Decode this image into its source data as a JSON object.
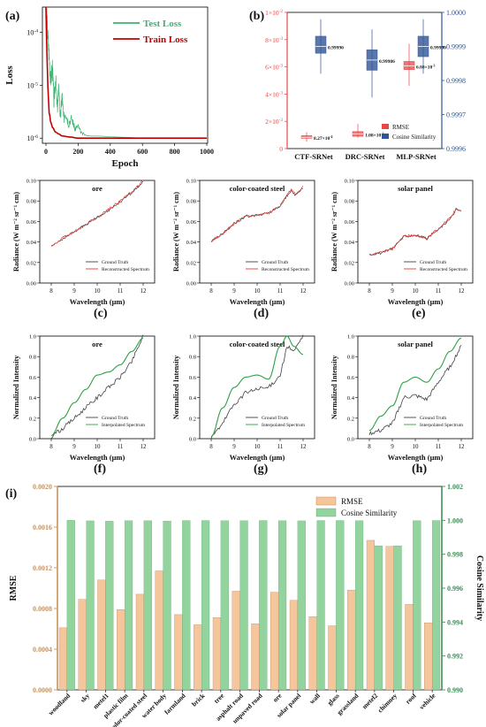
{
  "panel_letters": [
    "(a)",
    "(b)",
    "(c)",
    "(d)",
    "(e)",
    "(f)",
    "(g)",
    "(h)",
    "(i)"
  ],
  "colors": {
    "test_loss": "#3cb371",
    "train_loss": "#c00000",
    "rmse_red": "#e8474a",
    "cos_blue": "#2f5597",
    "ground_truth": "#404040",
    "reconstructed": "#e53935",
    "interpolated": "#2ea043",
    "bar_rmse": "#f5c59c",
    "bar_cos": "#93d39d",
    "axis_rmse": "#c8925e",
    "axis_cos": "#3e8f5a"
  },
  "chart_data": [
    {
      "id": "a",
      "type": "line",
      "xlabel": "Epoch",
      "ylabel": "Loss",
      "log_y": true,
      "xlim": [
        0,
        1000
      ],
      "ylim": [
        8e-07,
        0.0003
      ],
      "xticks": [
        "0",
        "200",
        "400",
        "600",
        "800",
        "1000"
      ],
      "yticks": [
        {
          "v": 0.0001,
          "label": "10^-4"
        },
        {
          "v": 1e-05,
          "label": "10^-5"
        },
        {
          "v": 1e-06,
          "label": "10^-6"
        }
      ],
      "series": [
        {
          "name": "Test Loss",
          "x": [
            0,
            5,
            10,
            20,
            30,
            40,
            50,
            60,
            70,
            80,
            90,
            100,
            110,
            120,
            140,
            160,
            180,
            200,
            220,
            260,
            300,
            400,
            600,
            800,
            1000
          ],
          "y": [
            0.0003,
            0.0002,
            8e-05,
            3e-05,
            1e-05,
            2e-05,
            4e-06,
            1.2e-05,
            3e-06,
            8e-06,
            2e-06,
            6e-06,
            2e-06,
            3e-06,
            1.8e-06,
            2.2e-06,
            1.4e-06,
            1.6e-06,
            1.2e-06,
            1.1e-06,
            1.1e-06,
            1.05e-06,
            1e-06,
            1e-06,
            1e-06
          ]
        },
        {
          "name": "Train Loss",
          "x": [
            0,
            5,
            10,
            20,
            30,
            40,
            60,
            80,
            100,
            150,
            200,
            300,
            400,
            600,
            800,
            1000
          ],
          "y": [
            0.0003,
            5e-05,
            1e-05,
            3e-06,
            2e-06,
            1.6e-06,
            1.3e-06,
            1.2e-06,
            1.1e-06,
            1.05e-06,
            1e-06,
            1e-06,
            1e-06,
            1e-06,
            1e-06,
            1e-06
          ]
        }
      ]
    },
    {
      "id": "b",
      "type": "box",
      "categories": [
        "CTF-SRNet",
        "DRC-SRNet",
        "MLP-SRNet"
      ],
      "ylim_left": [
        0,
        0.01
      ],
      "ylim_right": [
        0.9996,
        1.0
      ],
      "yticks_left": [
        {
          "v": 0,
          "label": "0"
        },
        {
          "v": 0.002,
          "label": "2×10^-3"
        },
        {
          "v": 0.004,
          "label": "4×10^-3"
        },
        {
          "v": 0.006,
          "label": "6×10^-3"
        },
        {
          "v": 0.008,
          "label": "8×10^-3"
        },
        {
          "v": 0.01,
          "label": "1×10^-2"
        }
      ],
      "yticks_right": [
        "0.9996",
        "0.9997",
        "0.9998",
        "0.9999",
        "1.0000"
      ],
      "series": [
        {
          "name": "RMSE",
          "boxes": [
            {
              "min": 0.0005,
              "q1": 0.00075,
              "med": 0.00083,
              "q3": 0.00095,
              "max": 0.0012,
              "label": "8.27×10^-4"
            },
            {
              "min": 0.0008,
              "q1": 0.0009,
              "med": 0.00108,
              "q3": 0.00125,
              "max": 0.0018,
              "label": "1.08×10^-3"
            },
            {
              "min": 0.0046,
              "q1": 0.0058,
              "med": 0.00608,
              "q3": 0.0064,
              "max": 0.0077,
              "label": "6.08×10^-3"
            }
          ]
        },
        {
          "name": "Cosine Similarity",
          "boxes": [
            {
              "min": 0.99982,
              "q1": 0.99988,
              "med": 0.9999,
              "q3": 0.99993,
              "max": 0.99998,
              "label": "0.99990"
            },
            {
              "min": 0.99975,
              "q1": 0.99983,
              "med": 0.99986,
              "q3": 0.99989,
              "max": 0.99995,
              "label": "0.99986"
            },
            {
              "min": 0.99982,
              "q1": 0.99987,
              "med": 0.9999,
              "q3": 0.99993,
              "max": 0.99998,
              "label": "0.99990"
            }
          ]
        }
      ]
    },
    {
      "id": "c",
      "type": "line",
      "title": "ore",
      "xlabel": "Wavelength (μm)",
      "ylabel": "Radiance (W m⁻² sr⁻¹ cm)",
      "xlim": [
        7.5,
        12.5
      ],
      "ylim": [
        0,
        0.1
      ],
      "xticks": [
        "8",
        "9",
        "10",
        "11",
        "12"
      ],
      "yticks": [
        "0.00",
        "0.02",
        "0.04",
        "0.06",
        "0.08",
        "0.10"
      ],
      "series": [
        {
          "name": "Ground Truth",
          "x": [
            8,
            8.5,
            9,
            9.5,
            10,
            10.5,
            11,
            11.5,
            11.8,
            12
          ],
          "y": [
            0.036,
            0.043,
            0.05,
            0.057,
            0.064,
            0.071,
            0.079,
            0.088,
            0.094,
            0.099
          ]
        },
        {
          "name": "Reconstructed Spectrum",
          "x": [
            8,
            8.5,
            9,
            9.5,
            10,
            10.5,
            11,
            11.5,
            11.8,
            12
          ],
          "y": [
            0.036,
            0.044,
            0.05,
            0.057,
            0.064,
            0.072,
            0.08,
            0.089,
            0.095,
            0.1
          ]
        }
      ]
    },
    {
      "id": "d",
      "type": "line",
      "title": "color-coated steel",
      "xlabel": "Wavelength (μm)",
      "ylabel": "Radiance (W m⁻² sr⁻¹ cm)",
      "xlim": [
        7.5,
        12.5
      ],
      "ylim": [
        0,
        0.1
      ],
      "xticks": [
        "8",
        "9",
        "10",
        "11",
        "12"
      ],
      "yticks": [
        "0.00",
        "0.02",
        "0.04",
        "0.06",
        "0.08",
        "0.10"
      ],
      "series": [
        {
          "name": "Ground Truth",
          "x": [
            8,
            8.5,
            9,
            9.5,
            10,
            10.5,
            11,
            11.3,
            11.5,
            11.7,
            12
          ],
          "y": [
            0.041,
            0.048,
            0.058,
            0.065,
            0.066,
            0.068,
            0.075,
            0.085,
            0.09,
            0.085,
            0.093
          ]
        },
        {
          "name": "Reconstructed Spectrum",
          "x": [
            8,
            8.5,
            9,
            9.5,
            10,
            10.5,
            11,
            11.3,
            11.5,
            11.7,
            12
          ],
          "y": [
            0.041,
            0.048,
            0.058,
            0.065,
            0.066,
            0.068,
            0.075,
            0.086,
            0.091,
            0.086,
            0.094
          ]
        }
      ]
    },
    {
      "id": "e",
      "type": "line",
      "title": "solar panel",
      "xlabel": "Wavelength (μm)",
      "ylabel": "Radiance (W m⁻² sr⁻¹ cm)",
      "xlim": [
        7.5,
        12.5
      ],
      "ylim": [
        0,
        0.1
      ],
      "xticks": [
        "8",
        "9",
        "10",
        "11",
        "12"
      ],
      "yticks": [
        "0.00",
        "0.02",
        "0.04",
        "0.06",
        "0.08",
        "0.10"
      ],
      "series": [
        {
          "name": "Ground Truth",
          "x": [
            8,
            8.5,
            9,
            9.5,
            10,
            10.5,
            11,
            11.5,
            11.8,
            12
          ],
          "y": [
            0.028,
            0.029,
            0.034,
            0.045,
            0.047,
            0.043,
            0.052,
            0.062,
            0.072,
            0.07
          ]
        },
        {
          "name": "Reconstructed Spectrum",
          "x": [
            8,
            8.5,
            9,
            9.5,
            10,
            10.5,
            11,
            11.5,
            11.8,
            12
          ],
          "y": [
            0.027,
            0.03,
            0.033,
            0.046,
            0.046,
            0.044,
            0.053,
            0.063,
            0.073,
            0.069
          ]
        }
      ]
    },
    {
      "id": "f",
      "type": "line",
      "title": "ore",
      "xlabel": "Wavelength (μm)",
      "ylabel": "Normalized Intensity",
      "xlim": [
        7.5,
        12.5
      ],
      "ylim": [
        0,
        1
      ],
      "xticks": [
        "8",
        "9",
        "10",
        "11",
        "12"
      ],
      "yticks": [
        "0.0",
        "0.2",
        "0.4",
        "0.6",
        "0.8",
        "1.0"
      ],
      "series": [
        {
          "name": "Ground Truth",
          "x": [
            8,
            8.5,
            9,
            9.5,
            10,
            10.5,
            11,
            11.5,
            12
          ],
          "y": [
            0.02,
            0.1,
            0.2,
            0.3,
            0.4,
            0.5,
            0.6,
            0.75,
            1.0
          ]
        },
        {
          "name": "Interpolated Spectrum",
          "x": [
            8,
            8.5,
            9,
            9.5,
            10,
            10.5,
            11,
            11.5,
            12
          ],
          "y": [
            0.03,
            0.2,
            0.35,
            0.48,
            0.62,
            0.65,
            0.72,
            0.85,
            0.98
          ]
        }
      ]
    },
    {
      "id": "g",
      "type": "line",
      "title": "color-coated steel",
      "xlabel": "Wavelength (μm)",
      "ylabel": "Normalized Intensity",
      "xlim": [
        7.5,
        12.5
      ],
      "ylim": [
        0,
        1
      ],
      "xticks": [
        "8",
        "9",
        "10",
        "11",
        "12"
      ],
      "yticks": [
        "0.0",
        "0.2",
        "0.4",
        "0.6",
        "0.8",
        "1.0"
      ],
      "series": [
        {
          "name": "Ground Truth",
          "x": [
            8,
            8.5,
            9,
            9.5,
            10,
            10.5,
            11,
            11.3,
            11.6,
            12
          ],
          "y": [
            0.0,
            0.15,
            0.33,
            0.45,
            0.48,
            0.5,
            0.62,
            0.9,
            0.85,
            1.0
          ]
        },
        {
          "name": "Interpolated Spectrum",
          "x": [
            8,
            8.5,
            9,
            9.5,
            10,
            10.5,
            11,
            11.3,
            11.6,
            12
          ],
          "y": [
            0.02,
            0.3,
            0.5,
            0.6,
            0.62,
            0.58,
            0.9,
            1.0,
            0.9,
            0.82
          ]
        }
      ]
    },
    {
      "id": "h",
      "type": "line",
      "title": "solar panel",
      "xlabel": "Wavelength (μm)",
      "ylabel": "Normalized Intensity",
      "xlim": [
        7.5,
        12.5
      ],
      "ylim": [
        0,
        1
      ],
      "xticks": [
        "8",
        "9",
        "10",
        "11",
        "12"
      ],
      "yticks": [
        "0.0",
        "0.2",
        "0.4",
        "0.6",
        "0.8",
        "1.0"
      ],
      "series": [
        {
          "name": "Ground Truth",
          "x": [
            8,
            8.5,
            9,
            9.5,
            10,
            10.5,
            11,
            11.5,
            12
          ],
          "y": [
            0.05,
            0.08,
            0.15,
            0.4,
            0.42,
            0.38,
            0.55,
            0.7,
            0.9
          ]
        },
        {
          "name": "Interpolated Spectrum",
          "x": [
            8,
            8.5,
            9,
            9.5,
            10,
            10.5,
            11,
            11.5,
            12
          ],
          "y": [
            0.08,
            0.22,
            0.32,
            0.55,
            0.6,
            0.55,
            0.68,
            0.85,
            0.98
          ]
        }
      ]
    },
    {
      "id": "i",
      "type": "bar",
      "categories": [
        "woodland",
        "sky",
        "metel1",
        "plastic film",
        "color-coated steel",
        "water body",
        "farmland",
        "brick",
        "tree",
        "asphalt road",
        "unpaved road",
        "ore",
        "solar panel",
        "wall",
        "glass",
        "grassland",
        "metel2",
        "chimney",
        "roof",
        "vehicle"
      ],
      "ylim_left": [
        0,
        0.002
      ],
      "ylim_right": [
        0.99,
        1.002
      ],
      "yticks_left": [
        "0.0000",
        "0.0004",
        "0.0008",
        "0.0012",
        "0.0016",
        "0.0020"
      ],
      "yticks_right": [
        "0.990",
        "0.992",
        "0.994",
        "0.996",
        "0.998",
        "1.000",
        "1.002"
      ],
      "ylabel_left": "RMSE",
      "ylabel_right": "Cosine Similarity",
      "series": [
        {
          "name": "RMSE",
          "values": [
            0.00061,
            0.00089,
            0.00108,
            0.00079,
            0.00094,
            0.00117,
            0.00074,
            0.00064,
            0.00071,
            0.00097,
            0.00065,
            0.00096,
            0.00088,
            0.00072,
            0.00063,
            0.00098,
            0.00147,
            0.00141,
            0.00084,
            0.00066
          ]
        },
        {
          "name": "Cosine Similarity",
          "values": [
            1.0,
            0.99997,
            0.99995,
            0.99998,
            0.99998,
            0.99996,
            0.99999,
            0.99999,
            0.99998,
            0.99998,
            0.99999,
            0.99998,
            0.99997,
            0.99999,
            0.99999,
            0.99998,
            0.9985,
            0.9985,
            0.99998,
            0.99999
          ]
        }
      ]
    }
  ]
}
